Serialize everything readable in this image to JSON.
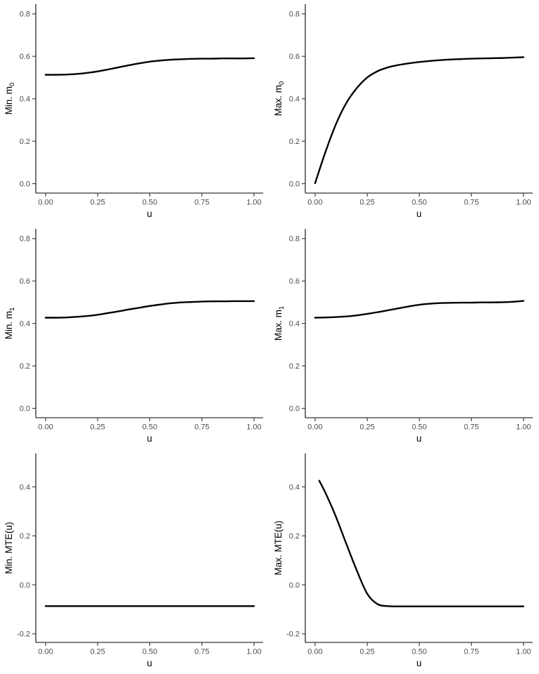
{
  "page": {
    "background": "#ffffff"
  },
  "styles": {
    "curve_color": "#000000",
    "axis_color": "#000000",
    "tick_color": "#333333",
    "tick_label_color": "#4d4d4d",
    "axis_title_color": "#000000"
  },
  "chart_data": [
    {
      "name": "Min. m0",
      "type": "line",
      "xlabel": "u",
      "ylabel": {
        "main": "Min. m",
        "sub": "0"
      },
      "xlim": [
        -0.047,
        1.044
      ],
      "ylim": [
        -0.0445,
        0.8455
      ],
      "grid": false,
      "legend": "none",
      "xticks": [
        {
          "v": 0.0,
          "label": "0.00"
        },
        {
          "v": 0.25,
          "label": "0.25"
        },
        {
          "v": 0.5,
          "label": "0.50"
        },
        {
          "v": 0.75,
          "label": "0.75"
        },
        {
          "v": 1.0,
          "label": "1.00"
        }
      ],
      "yticks": [
        {
          "v": 0.0,
          "label": "0.0"
        },
        {
          "v": 0.2,
          "label": "0.2"
        },
        {
          "v": 0.4,
          "label": "0.4"
        },
        {
          "v": 0.6,
          "label": "0.6"
        },
        {
          "v": 0.8,
          "label": "0.8"
        }
      ],
      "x": [
        0,
        0.05,
        0.1,
        0.15,
        0.2,
        0.25,
        0.3,
        0.35,
        0.4,
        0.45,
        0.5,
        0.55,
        0.6,
        0.65,
        0.7,
        0.75,
        0.8,
        0.85,
        0.9,
        0.95,
        1
      ],
      "y": [
        0.513,
        0.513,
        0.514,
        0.517,
        0.522,
        0.529,
        0.538,
        0.548,
        0.558,
        0.567,
        0.575,
        0.58,
        0.584,
        0.586,
        0.588,
        0.589,
        0.589,
        0.59,
        0.59,
        0.59,
        0.591
      ]
    },
    {
      "name": "Max. m0",
      "type": "line",
      "xlabel": "u",
      "ylabel": {
        "main": "Max. m",
        "sub": "0"
      },
      "xlim": [
        -0.047,
        1.044
      ],
      "ylim": [
        -0.0445,
        0.8455
      ],
      "grid": false,
      "legend": "none",
      "xticks": [
        {
          "v": 0.0,
          "label": "0.00"
        },
        {
          "v": 0.25,
          "label": "0.25"
        },
        {
          "v": 0.5,
          "label": "0.50"
        },
        {
          "v": 0.75,
          "label": "0.75"
        },
        {
          "v": 1.0,
          "label": "1.00"
        }
      ],
      "yticks": [
        {
          "v": 0.0,
          "label": "0.0"
        },
        {
          "v": 0.2,
          "label": "0.2"
        },
        {
          "v": 0.4,
          "label": "0.4"
        },
        {
          "v": 0.6,
          "label": "0.6"
        },
        {
          "v": 0.8,
          "label": "0.8"
        }
      ],
      "x": [
        0,
        0.05,
        0.1,
        0.15,
        0.2,
        0.25,
        0.3,
        0.35,
        0.4,
        0.45,
        0.5,
        0.55,
        0.6,
        0.65,
        0.7,
        0.75,
        0.8,
        0.85,
        0.9,
        0.95,
        1
      ],
      "y": [
        0.002,
        0.15,
        0.28,
        0.38,
        0.45,
        0.5,
        0.53,
        0.548,
        0.559,
        0.567,
        0.573,
        0.578,
        0.582,
        0.585,
        0.587,
        0.589,
        0.59,
        0.591,
        0.592,
        0.594,
        0.596
      ]
    },
    {
      "name": "Min. m1",
      "type": "line",
      "xlabel": "u",
      "ylabel": {
        "main": "Min. m",
        "sub": "1"
      },
      "xlim": [
        -0.047,
        1.044
      ],
      "ylim": [
        -0.0445,
        0.8455
      ],
      "grid": false,
      "legend": "none",
      "xticks": [
        {
          "v": 0.0,
          "label": "0.00"
        },
        {
          "v": 0.25,
          "label": "0.25"
        },
        {
          "v": 0.5,
          "label": "0.50"
        },
        {
          "v": 0.75,
          "label": "0.75"
        },
        {
          "v": 1.0,
          "label": "1.00"
        }
      ],
      "yticks": [
        {
          "v": 0.0,
          "label": "0.0"
        },
        {
          "v": 0.2,
          "label": "0.2"
        },
        {
          "v": 0.4,
          "label": "0.4"
        },
        {
          "v": 0.6,
          "label": "0.6"
        },
        {
          "v": 0.8,
          "label": "0.8"
        }
      ],
      "x": [
        0,
        0.05,
        0.1,
        0.15,
        0.2,
        0.25,
        0.3,
        0.35,
        0.4,
        0.45,
        0.5,
        0.55,
        0.6,
        0.65,
        0.7,
        0.75,
        0.8,
        0.85,
        0.9,
        0.95,
        1
      ],
      "y": [
        0.427,
        0.427,
        0.428,
        0.431,
        0.435,
        0.441,
        0.449,
        0.457,
        0.466,
        0.474,
        0.482,
        0.489,
        0.495,
        0.499,
        0.501,
        0.503,
        0.504,
        0.504,
        0.505,
        0.505,
        0.505
      ]
    },
    {
      "name": "Max. m1",
      "type": "line",
      "xlabel": "u",
      "ylabel": {
        "main": "Max. m",
        "sub": "1"
      },
      "xlim": [
        -0.047,
        1.044
      ],
      "ylim": [
        -0.0445,
        0.8455
      ],
      "grid": false,
      "legend": "none",
      "xticks": [
        {
          "v": 0.0,
          "label": "0.00"
        },
        {
          "v": 0.25,
          "label": "0.25"
        },
        {
          "v": 0.5,
          "label": "0.50"
        },
        {
          "v": 0.75,
          "label": "0.75"
        },
        {
          "v": 1.0,
          "label": "1.00"
        }
      ],
      "yticks": [
        {
          "v": 0.0,
          "label": "0.0"
        },
        {
          "v": 0.2,
          "label": "0.2"
        },
        {
          "v": 0.4,
          "label": "0.4"
        },
        {
          "v": 0.6,
          "label": "0.6"
        },
        {
          "v": 0.8,
          "label": "0.8"
        }
      ],
      "x": [
        0,
        0.05,
        0.1,
        0.15,
        0.2,
        0.25,
        0.3,
        0.35,
        0.4,
        0.45,
        0.5,
        0.55,
        0.6,
        0.65,
        0.7,
        0.75,
        0.8,
        0.85,
        0.9,
        0.95,
        1
      ],
      "y": [
        0.427,
        0.428,
        0.43,
        0.433,
        0.438,
        0.445,
        0.453,
        0.462,
        0.471,
        0.48,
        0.488,
        0.493,
        0.496,
        0.497,
        0.498,
        0.498,
        0.499,
        0.499,
        0.5,
        0.502,
        0.506
      ]
    },
    {
      "name": "Min. MTE(u)",
      "type": "line",
      "xlabel": "u",
      "ylabel": {
        "main": "Min. MTE(u)",
        "sub": ""
      },
      "xlim": [
        -0.047,
        1.044
      ],
      "ylim": [
        -0.235,
        0.536
      ],
      "grid": false,
      "legend": "none",
      "xticks": [
        {
          "v": 0.0,
          "label": "0.00"
        },
        {
          "v": 0.25,
          "label": "0.25"
        },
        {
          "v": 0.5,
          "label": "0.50"
        },
        {
          "v": 0.75,
          "label": "0.75"
        },
        {
          "v": 1.0,
          "label": "1.00"
        }
      ],
      "yticks": [
        {
          "v": -0.2,
          "label": "-0.2"
        },
        {
          "v": 0.0,
          "label": "0.0"
        },
        {
          "v": 0.2,
          "label": "0.2"
        },
        {
          "v": 0.4,
          "label": "0.4"
        }
      ],
      "x": [
        0,
        0.05,
        0.1,
        0.15,
        0.2,
        0.25,
        0.3,
        0.35,
        0.4,
        0.45,
        0.5,
        0.55,
        0.6,
        0.65,
        0.7,
        0.75,
        0.8,
        0.85,
        0.9,
        0.95,
        1
      ],
      "y": [
        -0.087,
        -0.087,
        -0.087,
        -0.087,
        -0.087,
        -0.087,
        -0.087,
        -0.087,
        -0.087,
        -0.087,
        -0.087,
        -0.087,
        -0.087,
        -0.087,
        -0.087,
        -0.087,
        -0.087,
        -0.087,
        -0.087,
        -0.087,
        -0.087
      ]
    },
    {
      "name": "Max. MTE(u)",
      "type": "line",
      "xlabel": "u",
      "ylabel": {
        "main": "Max. MTE(u)",
        "sub": ""
      },
      "xlim": [
        -0.047,
        1.044
      ],
      "ylim": [
        -0.235,
        0.536
      ],
      "grid": false,
      "legend": "none",
      "xticks": [
        {
          "v": 0.0,
          "label": "0.00"
        },
        {
          "v": 0.25,
          "label": "0.25"
        },
        {
          "v": 0.5,
          "label": "0.50"
        },
        {
          "v": 0.75,
          "label": "0.75"
        },
        {
          "v": 1.0,
          "label": "1.00"
        }
      ],
      "yticks": [
        {
          "v": -0.2,
          "label": "-0.2"
        },
        {
          "v": 0.0,
          "label": "0.0"
        },
        {
          "v": 0.2,
          "label": "0.2"
        },
        {
          "v": 0.4,
          "label": "0.4"
        }
      ],
      "x": [
        0.02,
        0.05,
        0.1,
        0.15,
        0.2,
        0.25,
        0.3,
        0.35,
        0.4,
        0.45,
        0.5,
        0.55,
        0.6,
        0.65,
        0.7,
        0.75,
        0.8,
        0.85,
        0.9,
        0.95,
        1
      ],
      "y": [
        0.425,
        0.375,
        0.278,
        0.167,
        0.059,
        -0.036,
        -0.079,
        -0.087,
        -0.088,
        -0.088,
        -0.088,
        -0.088,
        -0.088,
        -0.088,
        -0.088,
        -0.088,
        -0.088,
        -0.088,
        -0.088,
        -0.088,
        -0.088
      ]
    }
  ]
}
